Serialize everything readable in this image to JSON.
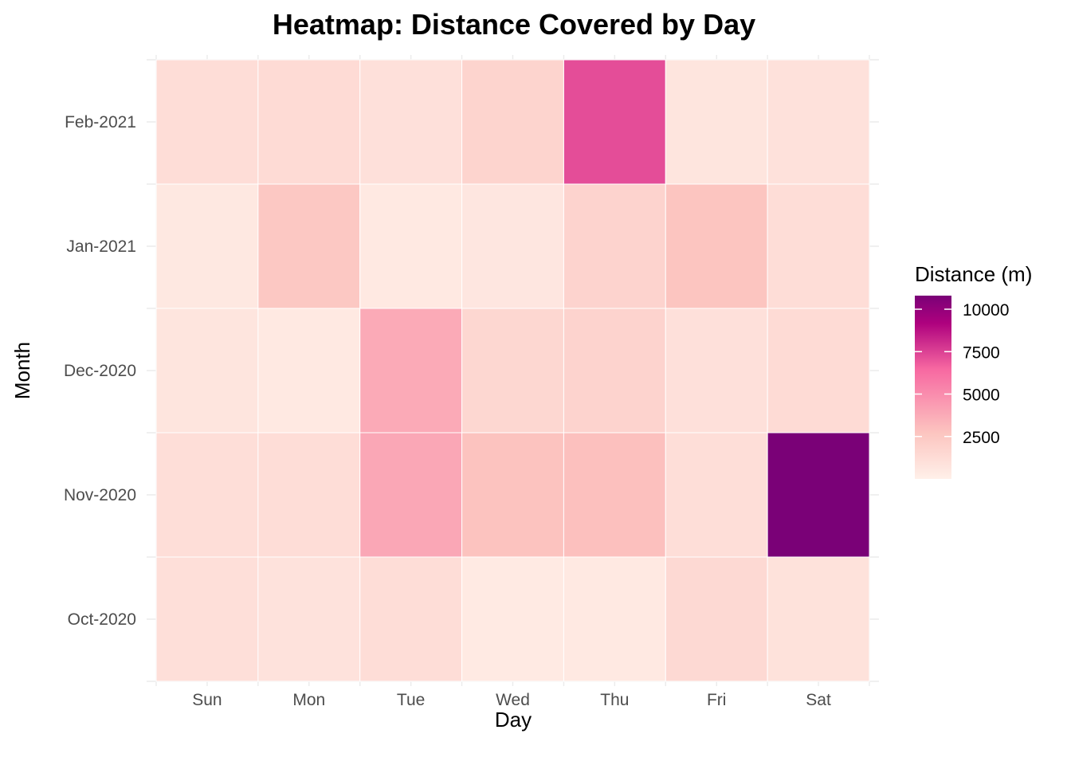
{
  "chart_data": {
    "type": "heatmap",
    "title": "Heatmap: Distance Covered by Day",
    "xlabel": "Day",
    "ylabel": "Month",
    "x_categories": [
      "Sun",
      "Mon",
      "Tue",
      "Wed",
      "Thu",
      "Fri",
      "Sat"
    ],
    "y_categories": [
      "Oct-2020",
      "Nov-2020",
      "Dec-2020",
      "Jan-2021",
      "Feb-2021"
    ],
    "values": [
      [
        1050,
        850,
        1200,
        400,
        450,
        1450,
        900
      ],
      [
        1150,
        1200,
        3900,
        2800,
        2900,
        1100,
        10800
      ],
      [
        700,
        450,
        3800,
        1600,
        1800,
        1000,
        1350
      ],
      [
        500,
        2500,
        450,
        600,
        1800,
        2700,
        1200
      ],
      [
        1200,
        1350,
        1000,
        1750,
        7200,
        700,
        950
      ]
    ],
    "colorbar": {
      "title": "Distance (m)",
      "min": 0,
      "max": 10800,
      "ticks": [
        2500,
        5000,
        7500,
        10000
      ],
      "tick_labels": [
        "2500",
        "5000",
        "7500",
        "10000"
      ],
      "colors": [
        "#fff0e9",
        "#fcc5c0",
        "#f768a1",
        "#ae017e",
        "#7a0177"
      ],
      "color_stops": [
        0,
        0.25,
        0.6,
        0.85,
        1
      ]
    },
    "grid": true,
    "legend_position": "right"
  }
}
